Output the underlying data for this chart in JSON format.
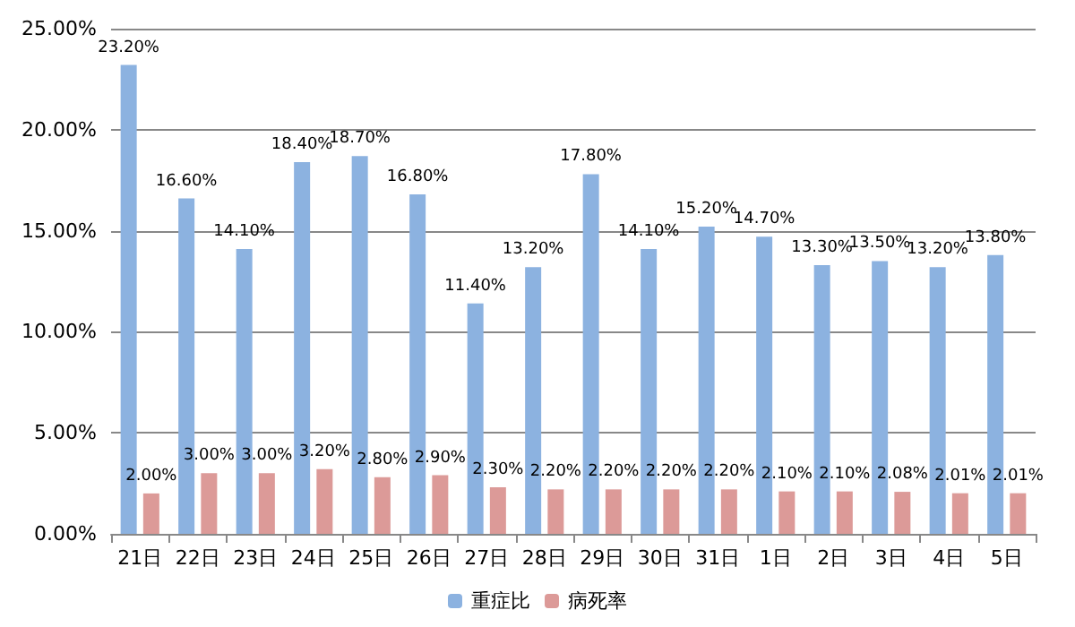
{
  "chart_data": {
    "type": "bar",
    "categories": [
      "21日",
      "22日",
      "23日",
      "24日",
      "25日",
      "26日",
      "27日",
      "28日",
      "29日",
      "30日",
      "31日",
      "1日",
      "2日",
      "3日",
      "4日",
      "5日"
    ],
    "series": [
      {
        "name": "重症比",
        "color": "#8cb2e0",
        "values": [
          23.2,
          16.6,
          14.1,
          18.4,
          18.7,
          16.8,
          11.4,
          13.2,
          17.8,
          14.1,
          15.2,
          14.7,
          13.3,
          13.5,
          13.2,
          13.8
        ],
        "value_labels": [
          "23.20%",
          "16.60%",
          "14.10%",
          "18.40%",
          "18.70%",
          "16.80%",
          "11.40%",
          "13.20%",
          "17.80%",
          "14.10%",
          "15.20%",
          "14.70%",
          "13.30%",
          "13.50%",
          "13.20%",
          "13.80%"
        ]
      },
      {
        "name": "病死率",
        "color": "#dc9a98",
        "values": [
          2.0,
          3.0,
          3.0,
          3.2,
          2.8,
          2.9,
          2.3,
          2.2,
          2.2,
          2.2,
          2.2,
          2.1,
          2.1,
          2.08,
          2.01,
          2.01
        ],
        "value_labels": [
          "2.00%",
          "3.00%",
          "3.00%",
          "3.20%",
          "2.80%",
          "2.90%",
          "2.30%",
          "2.20%",
          "2.20%",
          "2.20%",
          "2.20%",
          "2.10%",
          "2.10%",
          "2.08%",
          "2.01%",
          "2.01%"
        ]
      }
    ],
    "ylim": [
      0,
      25
    ],
    "yticks": [
      {
        "value": 0,
        "label": "0.00%"
      },
      {
        "value": 5,
        "label": "5.00%"
      },
      {
        "value": 10,
        "label": "10.00%"
      },
      {
        "value": 15,
        "label": "15.00%"
      },
      {
        "value": 20,
        "label": "20.00%"
      },
      {
        "value": 25,
        "label": "25.00%"
      }
    ],
    "grid": "y",
    "legend": "bottom"
  }
}
